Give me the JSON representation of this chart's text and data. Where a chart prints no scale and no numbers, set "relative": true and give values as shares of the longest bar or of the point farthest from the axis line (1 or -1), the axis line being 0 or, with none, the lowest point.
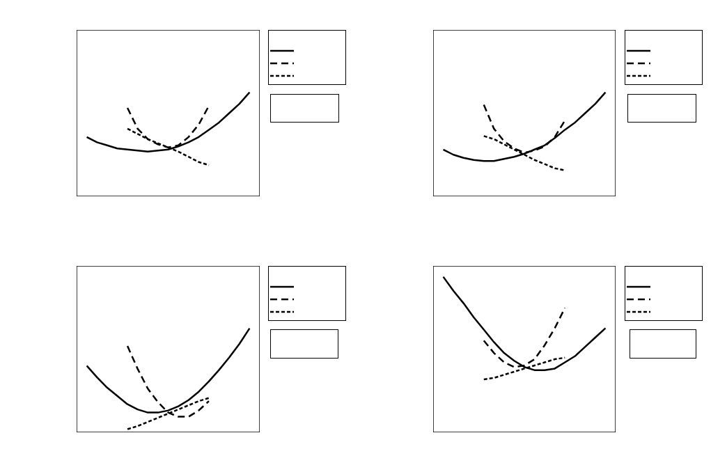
{
  "chart_data": [
    {
      "type": "line",
      "relative": true,
      "categories": [
        null,
        null,
        null,
        null,
        null,
        null,
        null,
        null,
        null,
        null,
        null,
        null,
        null,
        null,
        null,
        null,
        null
      ],
      "series": [
        {
          "color": "#000000",
          "line_style": "solid",
          "values": [
            0.57,
            0.52,
            0.49,
            0.46,
            0.45,
            0.44,
            0.43,
            0.44,
            0.45,
            0.48,
            0.52,
            0.57,
            0.64,
            0.71,
            0.8,
            0.89,
            1.0
          ]
        },
        {
          "color": "#000000",
          "line_style": "dashed",
          "values": [
            null,
            null,
            null,
            null,
            0.85,
            0.65,
            0.55,
            0.5,
            0.47,
            0.49,
            0.57,
            0.69,
            0.87,
            null,
            null,
            null,
            null
          ]
        },
        {
          "color": "#000000",
          "line_style": "dotted",
          "values": [
            null,
            null,
            null,
            null,
            0.65,
            0.6,
            0.55,
            0.51,
            0.47,
            0.43,
            0.38,
            0.33,
            0.3,
            null,
            null,
            null,
            null
          ]
        }
      ]
    },
    {
      "type": "line",
      "relative": true,
      "categories": [
        null,
        null,
        null,
        null,
        null,
        null,
        null,
        null,
        null,
        null,
        null,
        null,
        null,
        null,
        null,
        null,
        null
      ],
      "series": [
        {
          "color": "#000000",
          "line_style": "solid",
          "values": [
            0.45,
            0.4,
            0.37,
            0.35,
            0.34,
            0.34,
            0.36,
            0.38,
            0.41,
            0.45,
            0.49,
            0.56,
            0.64,
            0.71,
            0.8,
            0.89,
            1.0
          ]
        },
        {
          "color": "#000000",
          "line_style": "dashed",
          "values": [
            null,
            null,
            null,
            null,
            0.88,
            0.65,
            0.53,
            0.46,
            0.42,
            0.44,
            0.48,
            0.57,
            0.73,
            null,
            null,
            null,
            null
          ]
        },
        {
          "color": "#000000",
          "line_style": "dotted",
          "values": [
            null,
            null,
            null,
            null,
            0.58,
            0.55,
            0.5,
            0.45,
            0.4,
            0.35,
            0.31,
            0.27,
            0.25,
            null,
            null,
            null,
            null
          ]
        }
      ]
    },
    {
      "type": "line",
      "relative": true,
      "categories": [
        null,
        null,
        null,
        null,
        null,
        null,
        null,
        null,
        null,
        null,
        null,
        null,
        null,
        null,
        null,
        null,
        null
      ],
      "series": [
        {
          "color": "#000000",
          "line_style": "solid",
          "values": [
            0.64,
            0.53,
            0.43,
            0.35,
            0.27,
            0.22,
            0.19,
            0.19,
            0.21,
            0.25,
            0.31,
            0.39,
            0.49,
            0.6,
            0.72,
            0.85,
            1.0
          ]
        },
        {
          "color": "#000000",
          "line_style": "dashed",
          "values": [
            null,
            null,
            null,
            null,
            0.83,
            0.61,
            0.42,
            0.29,
            0.19,
            0.15,
            0.15,
            0.21,
            0.3,
            null,
            null,
            null,
            null
          ]
        },
        {
          "color": "#000000",
          "line_style": "dotted",
          "values": [
            null,
            null,
            null,
            null,
            0.03,
            0.06,
            0.1,
            0.14,
            0.18,
            0.22,
            0.26,
            0.3,
            0.33,
            null,
            null,
            null,
            null
          ]
        }
      ]
    },
    {
      "type": "line",
      "relative": true,
      "categories": [
        null,
        null,
        null,
        null,
        null,
        null,
        null,
        null,
        null,
        null,
        null,
        null,
        null,
        null,
        null,
        null,
        null
      ],
      "series": [
        {
          "color": "#000000",
          "line_style": "solid",
          "values": [
            1.0,
            0.91,
            0.83,
            0.74,
            0.66,
            0.58,
            0.51,
            0.46,
            0.42,
            0.4,
            0.4,
            0.41,
            0.45,
            0.49,
            0.55,
            0.61,
            0.67
          ]
        },
        {
          "color": "#000000",
          "line_style": "dashed",
          "values": [
            null,
            null,
            null,
            null,
            0.59,
            0.51,
            0.45,
            0.42,
            0.43,
            0.47,
            0.56,
            0.67,
            0.8,
            null,
            null,
            null,
            null
          ]
        },
        {
          "color": "#000000",
          "line_style": "dotted",
          "values": [
            null,
            null,
            null,
            null,
            0.34,
            0.35,
            0.37,
            0.39,
            0.41,
            0.43,
            0.45,
            0.47,
            0.48,
            null,
            null,
            null,
            null
          ]
        }
      ]
    }
  ]
}
